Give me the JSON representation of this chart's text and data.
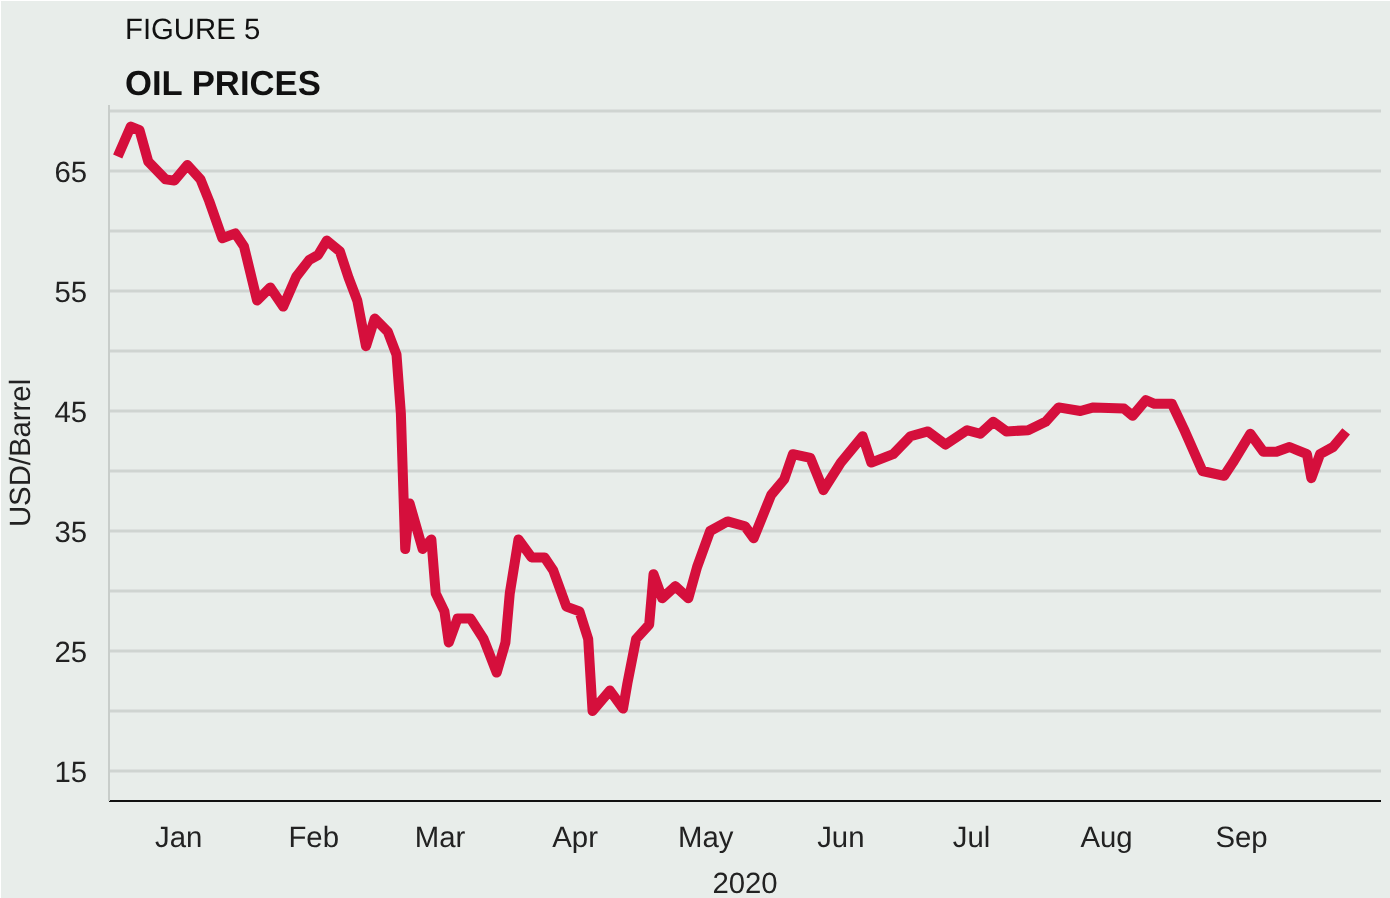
{
  "chart_data": {
    "type": "line",
    "title": "OIL PRICES",
    "subtitle": "FIGURE 5",
    "xlabel": "2020",
    "ylabel": "USD/Barrel",
    "x": [
      "2020-01-01",
      "2020-01-04",
      "2020-01-06",
      "2020-01-08",
      "2020-01-12",
      "2020-01-14",
      "2020-01-17",
      "2020-01-20",
      "2020-01-22",
      "2020-01-25",
      "2020-01-28",
      "2020-01-30",
      "2020-02-02",
      "2020-02-05",
      "2020-02-08",
      "2020-02-11",
      "2020-02-14",
      "2020-02-16",
      "2020-02-18",
      "2020-02-21",
      "2020-02-23",
      "2020-02-25",
      "2020-02-27",
      "2020-02-29",
      "2020-03-03",
      "2020-03-05",
      "2020-03-06",
      "2020-03-07",
      "2020-03-08",
      "2020-03-11",
      "2020-03-13",
      "2020-03-14",
      "2020-03-16",
      "2020-03-17",
      "2020-03-19",
      "2020-03-22",
      "2020-03-25",
      "2020-03-28",
      "2020-03-30",
      "2020-03-31",
      "2020-04-02",
      "2020-04-05",
      "2020-04-08",
      "2020-04-10",
      "2020-04-13",
      "2020-04-16",
      "2020-04-18",
      "2020-04-19",
      "2020-04-23",
      "2020-04-26",
      "2020-04-27",
      "2020-04-29",
      "2020-05-02",
      "2020-05-03",
      "2020-05-05",
      "2020-05-08",
      "2020-05-11",
      "2020-05-13",
      "2020-05-16",
      "2020-05-20",
      "2020-05-24",
      "2020-05-26",
      "2020-05-30",
      "2020-06-02",
      "2020-06-04",
      "2020-06-08",
      "2020-06-11",
      "2020-06-15",
      "2020-06-20",
      "2020-06-22",
      "2020-06-27",
      "2020-07-01",
      "2020-07-05",
      "2020-07-09",
      "2020-07-14",
      "2020-07-17",
      "2020-07-20",
      "2020-07-23",
      "2020-07-28",
      "2020-08-01",
      "2020-08-04",
      "2020-08-09",
      "2020-08-12",
      "2020-08-19",
      "2020-08-21",
      "2020-08-24",
      "2020-08-26",
      "2020-08-30",
      "2020-09-02",
      "2020-09-06",
      "2020-09-11",
      "2020-09-13",
      "2020-09-17",
      "2020-09-20",
      "2020-09-23",
      "2020-09-26",
      "2020-09-28",
      "2020-09-30",
      "2020-10-01",
      "2020-10-03",
      "2020-10-06",
      "2020-10-09"
    ],
    "series": [
      {
        "color": "#d50f3c",
        "values": [
          66.2,
          68.7,
          68.4,
          65.8,
          64.3,
          64.2,
          65.5,
          64.3,
          62.5,
          59.4,
          59.8,
          58.7,
          54.2,
          55.3,
          53.7,
          56.2,
          57.6,
          58.0,
          59.2,
          58.3,
          56.1,
          54.2,
          50.4,
          52.7,
          51.6,
          49.7,
          44.8,
          33.5,
          37.3,
          33.5,
          34.3,
          29.8,
          28.3,
          25.7,
          27.7,
          27.7,
          26.0,
          23.2,
          25.7,
          29.8,
          34.3,
          32.8,
          32.8,
          31.7,
          28.7,
          28.3,
          26.0,
          20.0,
          21.7,
          20.2,
          22.3,
          26.0,
          27.2,
          31.4,
          29.4,
          30.4,
          29.4,
          32.0,
          35.0,
          35.8,
          35.4,
          34.4,
          38.0,
          39.3,
          41.4,
          41.1,
          38.4,
          40.7,
          42.9,
          40.7,
          41.4,
          42.9,
          43.3,
          42.2,
          43.4,
          43.1,
          44.1,
          43.3,
          43.4,
          44.1,
          45.3,
          45.0,
          45.3,
          45.2,
          44.6,
          45.9,
          45.6,
          45.6,
          43.3,
          40.0,
          39.6,
          40.7,
          43.1,
          41.6,
          41.6,
          42.0,
          41.7,
          41.4,
          39.4,
          41.4,
          42.0,
          43.3
        ]
      }
    ],
    "xlim": [
      "2019-12-30",
      "2020-10-17"
    ],
    "xticks": [
      {
        "value": "2020-01-15",
        "label": "Jan"
      },
      {
        "value": "2020-02-15",
        "label": "Feb"
      },
      {
        "value": "2020-03-15",
        "label": "Mar"
      },
      {
        "value": "2020-04-15",
        "label": "Apr"
      },
      {
        "value": "2020-05-15",
        "label": "May"
      },
      {
        "value": "2020-06-15",
        "label": "Jun"
      },
      {
        "value": "2020-07-15",
        "label": "Jul"
      },
      {
        "value": "2020-08-15",
        "label": "Aug"
      },
      {
        "value": "2020-09-15",
        "label": "Sep"
      }
    ],
    "ylim": [
      12.5,
      70.5
    ],
    "yticks": [
      15,
      {
        "value": 20,
        "label": null
      },
      25,
      {
        "value": 30,
        "label": null
      },
      35,
      {
        "value": 40,
        "label": null
      },
      45,
      {
        "value": 50,
        "label": null
      },
      55,
      {
        "value": 60,
        "label": null
      },
      65,
      {
        "value": 70,
        "label": null
      }
    ],
    "grid": "y",
    "marker": "none",
    "line_style": "solid"
  }
}
